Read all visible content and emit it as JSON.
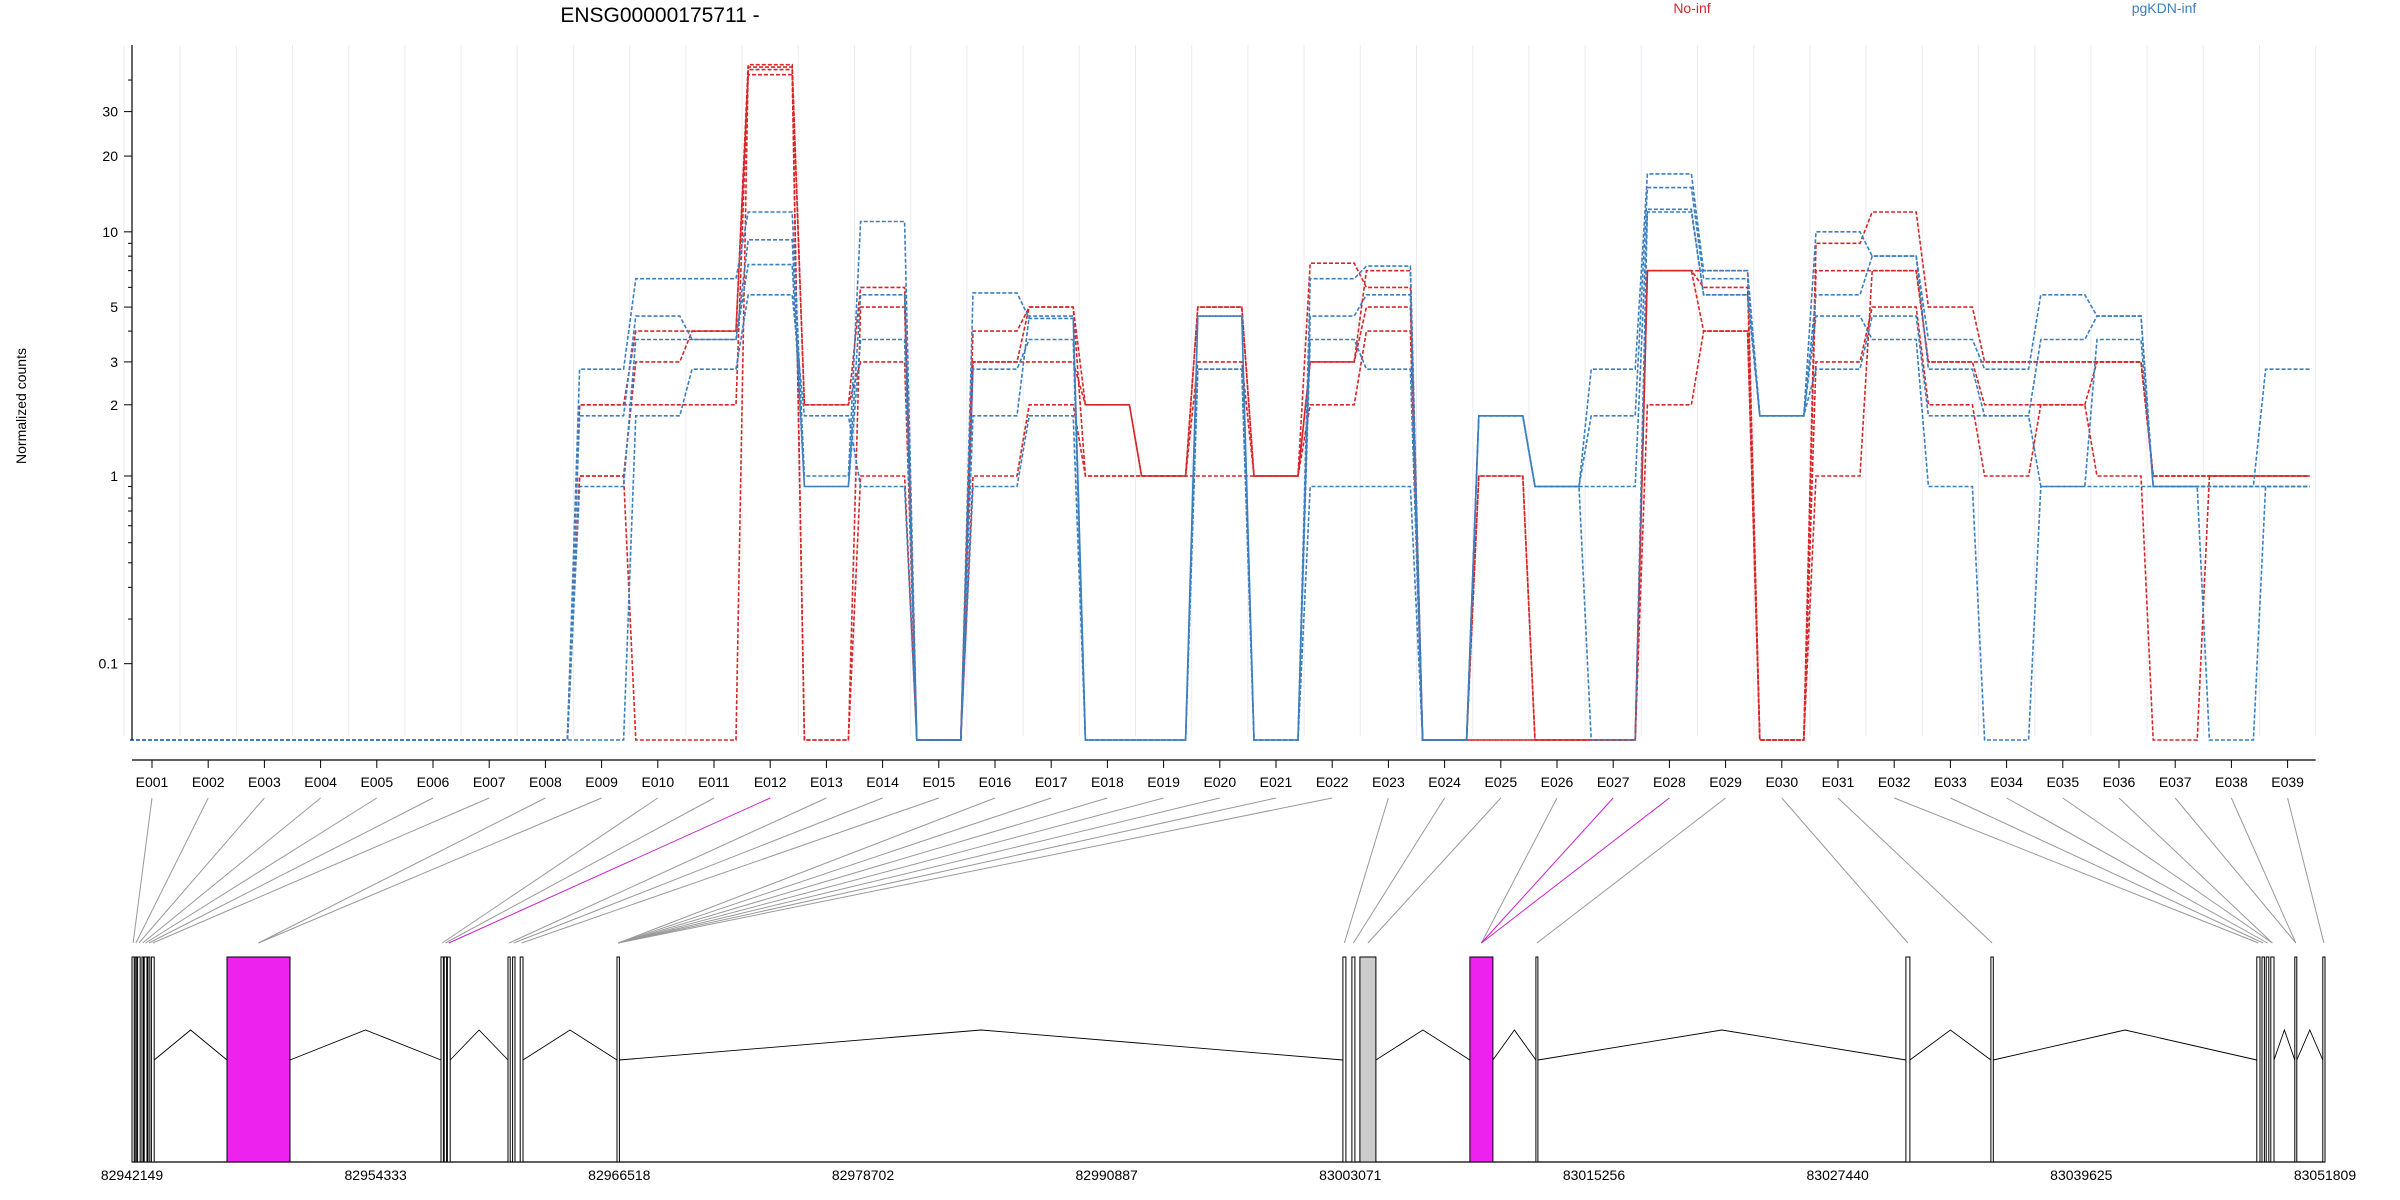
{
  "title": "ENSG00000175711 -",
  "ylabel": "Normalized counts",
  "legend": [
    {
      "label": "No-inf",
      "color": "#d62728"
    },
    {
      "label": "pgKDN-inf",
      "color": "#3a7fc0"
    }
  ],
  "colors": {
    "highlight_exon": "#ee22ee",
    "gray_exon": "#cccccc",
    "no_inf": "#d62728",
    "pgkdn_inf": "#3a7fc0"
  },
  "chart_data": {
    "type": "line",
    "title": "ENSG00000175711 -",
    "ylabel": "Normalized counts",
    "yscale": "log(y + 0.1)",
    "ylim": [
      0,
      48
    ],
    "yticks": [
      {
        "v": 0.1,
        "label": "0.1"
      },
      {
        "v": 1,
        "label": "1"
      },
      {
        "v": 2,
        "label": "2"
      },
      {
        "v": 3,
        "label": "3"
      },
      {
        "v": 5,
        "label": "5"
      },
      {
        "v": 10,
        "label": "10"
      },
      {
        "v": 20,
        "label": "20"
      },
      {
        "v": 30,
        "label": "30"
      }
    ],
    "categories": [
      "E001",
      "E002",
      "E003",
      "E004",
      "E005",
      "E006",
      "E007",
      "E008",
      "E009",
      "E010",
      "E011",
      "E012",
      "E013",
      "E014",
      "E015",
      "E016",
      "E017",
      "E018",
      "E019",
      "E020",
      "E021",
      "E022",
      "E023",
      "E024",
      "E025",
      "E026",
      "E027",
      "E028",
      "E029",
      "E030",
      "E031",
      "E032",
      "E033",
      "E034",
      "E035",
      "E036",
      "E037",
      "E038",
      "E039"
    ],
    "highlighted_categories": [
      "E012",
      "E027",
      "E028"
    ],
    "series": [
      {
        "group": "No-inf",
        "values": [
          0,
          0,
          0,
          0,
          0,
          0,
          0,
          0,
          1,
          3,
          4,
          42,
          0,
          5,
          0,
          4,
          5,
          1,
          1,
          5,
          1,
          7.5,
          6,
          0,
          1,
          0,
          0,
          7,
          6,
          0,
          9,
          12,
          5,
          3,
          3,
          3,
          1,
          1,
          1
        ]
      },
      {
        "group": "No-inf",
        "values": [
          0,
          0,
          0,
          0,
          0,
          0,
          0,
          0,
          2,
          2,
          2,
          44,
          2,
          6,
          0,
          3,
          3,
          2,
          1,
          3,
          1,
          3,
          5,
          0,
          1,
          0,
          0,
          2,
          4,
          0,
          7,
          7,
          3,
          2,
          2,
          3,
          1,
          1,
          1
        ]
      },
      {
        "group": "No-inf",
        "values": [
          0,
          0,
          0,
          0,
          0,
          0,
          0,
          0,
          1,
          0,
          0,
          45,
          0,
          1,
          0,
          1,
          2,
          1,
          1,
          1,
          1,
          2,
          4,
          0,
          0,
          0,
          0,
          7,
          7,
          0,
          3,
          5,
          2,
          1,
          2,
          1,
          0,
          1,
          1
        ]
      },
      {
        "group": "No-inf",
        "values": [
          0,
          0,
          0,
          0,
          0,
          0,
          0,
          0,
          2,
          4,
          4,
          46,
          2,
          3,
          0,
          3,
          5,
          2,
          1,
          5,
          1,
          3,
          7,
          0,
          0,
          0,
          0,
          7,
          4,
          0,
          1,
          7,
          3,
          3,
          3,
          3,
          1,
          1,
          1
        ]
      },
      {
        "group": "pgKDN-inf",
        "values": [
          0,
          0,
          0,
          0,
          0,
          0,
          0,
          0,
          2.8,
          6.5,
          6.5,
          12,
          1,
          11,
          0,
          5.7,
          4.5,
          0,
          0,
          4.6,
          0,
          6.5,
          7.3,
          0,
          1.8,
          0.9,
          2.8,
          17,
          7,
          1.8,
          10,
          8,
          3.7,
          2.8,
          5.6,
          4.6,
          0.9,
          0.9,
          2.8
        ]
      },
      {
        "group": "pgKDN-inf",
        "values": [
          0,
          0,
          0,
          0,
          0,
          0,
          0,
          0,
          1.8,
          4.6,
          3.7,
          9.3,
          0.9,
          5.6,
          0,
          2.8,
          3.7,
          0,
          0,
          4.6,
          0,
          4.6,
          5.6,
          0,
          1.8,
          0.9,
          1.8,
          15,
          6.5,
          1.8,
          5.6,
          8,
          2.8,
          1.8,
          3.7,
          4.6,
          0.9,
          0.9,
          0.9
        ]
      },
      {
        "group": "pgKDN-inf",
        "values": [
          0,
          0,
          0,
          0,
          0,
          0,
          0,
          0,
          0.9,
          3.7,
          3.7,
          7.4,
          0.9,
          3.7,
          0,
          1.8,
          4.6,
          0,
          0,
          2.8,
          0,
          3.7,
          2.8,
          0,
          1.8,
          0.9,
          0.9,
          12,
          5.6,
          1.8,
          2.8,
          4.6,
          1.8,
          1.8,
          0.9,
          3.7,
          0.9,
          0,
          0.9
        ]
      },
      {
        "group": "pgKDN-inf",
        "values": [
          0,
          0,
          0,
          0,
          0,
          0,
          0,
          0,
          0,
          1.8,
          2.8,
          5.6,
          1.8,
          0.9,
          0,
          0.9,
          1.8,
          0,
          0,
          2.8,
          0,
          0.9,
          0.9,
          0,
          1.8,
          0.9,
          0,
          12.3,
          5.6,
          1.8,
          4.6,
          3.7,
          0.9,
          0,
          0.9,
          0.9,
          0.9,
          0.9,
          0.9
        ]
      }
    ],
    "gene_model": {
      "coordinate_labels": [
        "82942149",
        "82954333",
        "82966518",
        "82978702",
        "82990887",
        "83003071",
        "83015256",
        "83027440",
        "83039625",
        "83051809"
      ],
      "exon_spans": [
        [
          82942149,
          82942260
        ],
        [
          82942310,
          82942380
        ],
        [
          82942430,
          82942560
        ],
        [
          82942650,
          82942720
        ],
        [
          82942760,
          82942900
        ],
        [
          82942950,
          82943040
        ],
        [
          82943120,
          82943260
        ],
        [
          82946900,
          82950050
        ],
        [
          82957600,
          82957720
        ],
        [
          82957760,
          82957880
        ],
        [
          82957920,
          82958060
        ],
        [
          82960950,
          82961060
        ],
        [
          82961180,
          82961300
        ],
        [
          82961560,
          82961700
        ],
        [
          82966400,
          82966518
        ],
        [
          83002700,
          83002850
        ],
        [
          83003150,
          83003300
        ],
        [
          83003550,
          83004350
        ],
        [
          83009050,
          83010200
        ],
        [
          83012350,
          83012450
        ],
        [
          83030850,
          83031050
        ],
        [
          83035100,
          83035220
        ],
        [
          83048400,
          83048560
        ],
        [
          83048660,
          83048780
        ],
        [
          83048870,
          83049000
        ],
        [
          83049100,
          83049260
        ],
        [
          83050300,
          83050400
        ],
        [
          83051700,
          83051809
        ]
      ],
      "highlighted_exons": [
        7,
        18
      ],
      "gray_exons": [
        17
      ]
    }
  }
}
